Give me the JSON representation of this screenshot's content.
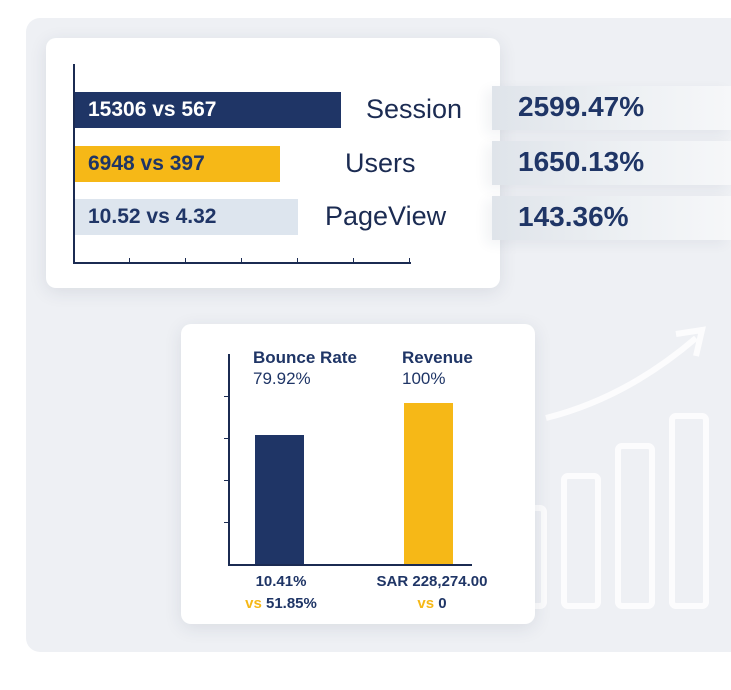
{
  "colors": {
    "navy": "#1f3566",
    "yellow": "#f6b817",
    "light": "#dde5ee",
    "text_dark": "#1b2b52"
  },
  "chart_data": [
    {
      "type": "bar",
      "orientation": "horizontal",
      "categories": [
        "Session",
        "Users",
        "PageView"
      ],
      "series": [
        {
          "values": [
            15306,
            6948,
            10.52
          ]
        },
        {
          "values": [
            567,
            397,
            4.32
          ]
        }
      ],
      "bar_labels": [
        "15306 vs 567",
        "6948 vs 397",
        "10.52 vs 4.32"
      ],
      "bar_fill": [
        0.75,
        0.58,
        0.63
      ],
      "bar_colors": [
        "#1f3566",
        "#f6b817",
        "#dde5ee"
      ],
      "label_colors": [
        "#ffffff",
        "#1f3566",
        "#1f3566"
      ],
      "percent_change": [
        "2599.47%",
        "1650.13%",
        "143.36%"
      ],
      "title": "",
      "xlabel": "",
      "ylabel": ""
    },
    {
      "type": "bar",
      "orientation": "vertical",
      "categories": [
        "Bounce Rate",
        "Revenue"
      ],
      "values": [
        79.92,
        100
      ],
      "value_labels": [
        "79.92%",
        "100%"
      ],
      "bar_colors": [
        "#1f3566",
        "#f6b817"
      ],
      "footers": [
        {
          "current": "10.41%",
          "vs_word": "vs",
          "previous": "51.85%"
        },
        {
          "current": "SAR 228,274.00",
          "vs_word": "vs",
          "previous": "0"
        }
      ],
      "ylim": [
        0,
        100
      ],
      "title": "",
      "xlabel": "",
      "ylabel": ""
    }
  ]
}
